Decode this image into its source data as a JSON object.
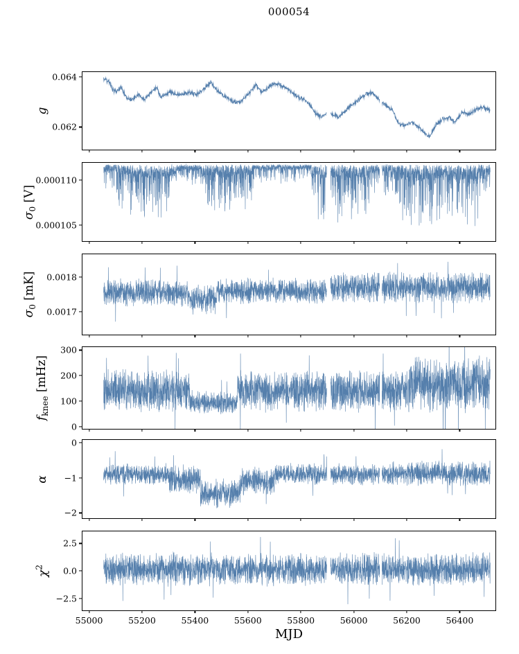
{
  "title": "000054",
  "xlabel": "MJD",
  "chart_data": {
    "type": "line",
    "title": "000054",
    "xlabel": "MJD",
    "series_color": "#4c78a8",
    "axis_color": "#000000",
    "grid": false,
    "legend": false,
    "x": {
      "lim": [
        54975,
        56535
      ],
      "ticks": [
        {
          "v": 55000,
          "label": "55000"
        },
        {
          "v": 55200,
          "label": "55200"
        },
        {
          "v": 55400,
          "label": "55400"
        },
        {
          "v": 55600,
          "label": "55600"
        },
        {
          "v": 55800,
          "label": "55800"
        },
        {
          "v": 56000,
          "label": "56000"
        },
        {
          "v": 56200,
          "label": "56200"
        },
        {
          "v": 56400,
          "label": "56400"
        }
      ],
      "data_range": [
        55055,
        56515
      ],
      "gaps": [
        [
          55898,
          55912
        ],
        [
          56098,
          56106
        ]
      ]
    },
    "panels": [
      {
        "id": "g",
        "ylabel": "g",
        "ylabel_parts": {
          "main": "g",
          "italic": true
        },
        "ylim": [
          0.0611,
          0.0642
        ],
        "yticks": [
          {
            "v": 0.064,
            "label": "0.064"
          },
          {
            "v": 0.062,
            "label": "0.062"
          }
        ],
        "style": "trend",
        "jitter": 8e-05,
        "trend_x": [
          55060,
          55075,
          55090,
          55105,
          55120,
          55140,
          55160,
          55185,
          55210,
          55235,
          55255,
          55270,
          55285,
          55305,
          55330,
          55355,
          55380,
          55400,
          55420,
          55440,
          55460,
          55480,
          55500,
          55520,
          55545,
          55570,
          55590,
          55610,
          55630,
          55650,
          55670,
          55690,
          55715,
          55740,
          55765,
          55790,
          55815,
          55840,
          55860,
          55880,
          55900,
          55920,
          55945,
          55970,
          55995,
          56020,
          56045,
          56070,
          56095,
          56120,
          56145,
          56170,
          56195,
          56220,
          56245,
          56265,
          56285,
          56310,
          56335,
          56360,
          56385,
          56410,
          56435,
          56460,
          56485,
          56510
        ],
        "trend_y": [
          0.0639,
          0.0638,
          0.0635,
          0.0634,
          0.0636,
          0.0632,
          0.0631,
          0.0633,
          0.0631,
          0.0634,
          0.0636,
          0.0632,
          0.0633,
          0.0634,
          0.0633,
          0.0633,
          0.0634,
          0.0633,
          0.0634,
          0.0636,
          0.0638,
          0.0635,
          0.0633,
          0.0632,
          0.063,
          0.063,
          0.0632,
          0.0634,
          0.0637,
          0.0634,
          0.0635,
          0.0637,
          0.0637,
          0.0636,
          0.0634,
          0.0632,
          0.0631,
          0.0628,
          0.0625,
          0.0624,
          0.0626,
          0.0625,
          0.0624,
          0.0627,
          0.0629,
          0.0631,
          0.0633,
          0.0634,
          0.0631,
          0.0629,
          0.0627,
          0.0621,
          0.0621,
          0.0622,
          0.062,
          0.0618,
          0.0616,
          0.0621,
          0.0623,
          0.0624,
          0.0622,
          0.0626,
          0.0625,
          0.0627,
          0.0628,
          0.0627
        ]
      },
      {
        "id": "sigma0_V",
        "ylabel": "σ0 [V]",
        "ylabel_parts": {
          "main": "σ",
          "sub": "0",
          "post": " [V]",
          "italic": true
        },
        "ylim": [
          0.0001032,
          0.0001119
        ],
        "yticks": [
          {
            "v": 0.00011,
            "label": "0.000110"
          },
          {
            "v": 0.000105,
            "label": "0.000105"
          }
        ],
        "style": "topdown",
        "top": 0.0001117,
        "segments": [
          {
            "x0": 55055,
            "x1": 55100,
            "depth": 3e-06
          },
          {
            "x0": 55100,
            "x1": 55150,
            "depth": 5e-06
          },
          {
            "x0": 55150,
            "x1": 55330,
            "depth": 6.5e-06
          },
          {
            "x0": 55330,
            "x1": 55430,
            "depth": 2.5e-06
          },
          {
            "x0": 55430,
            "x1": 55620,
            "depth": 5.5e-06
          },
          {
            "x0": 55620,
            "x1": 55840,
            "depth": 2.2e-06
          },
          {
            "x0": 55840,
            "x1": 56060,
            "depth": 6.5e-06
          },
          {
            "x0": 56060,
            "x1": 56170,
            "depth": 4e-06
          },
          {
            "x0": 56170,
            "x1": 56470,
            "depth": 7.5e-06
          },
          {
            "x0": 56470,
            "x1": 56515,
            "depth": 3.5e-06
          }
        ]
      },
      {
        "id": "sigma0_mK",
        "ylabel": "σ0 [mK]",
        "ylabel_parts": {
          "main": "σ",
          "sub": "0",
          "post": " [mK]",
          "italic": true
        },
        "ylim": [
          0.001635,
          0.001865
        ],
        "yticks": [
          {
            "v": 0.0018,
            "label": "0.0018"
          },
          {
            "v": 0.0017,
            "label": "0.0017"
          }
        ],
        "style": "band",
        "segments": [
          {
            "x0": 55055,
            "x1": 55380,
            "center": 0.001755,
            "amp": 4.2e-05
          },
          {
            "x0": 55380,
            "x1": 55480,
            "center": 0.001735,
            "amp": 4.5e-05
          },
          {
            "x0": 55480,
            "x1": 55900,
            "center": 0.00176,
            "amp": 4e-05
          },
          {
            "x0": 55900,
            "x1": 56515,
            "center": 0.00177,
            "amp": 4.8e-05
          }
        ]
      },
      {
        "id": "f_knee",
        "ylabel": "f_knee [mHz]",
        "ylabel_parts": {
          "main": "f",
          "sub": "knee",
          "post": " [mHz]",
          "italic": true
        },
        "ylim": [
          -8,
          312
        ],
        "yticks": [
          {
            "v": 300,
            "label": "300"
          },
          {
            "v": 200,
            "label": "200"
          },
          {
            "v": 100,
            "label": "100"
          },
          {
            "v": 0,
            "label": "0"
          }
        ],
        "style": "band",
        "segments": [
          {
            "x0": 55055,
            "x1": 55380,
            "center": 140,
            "amp": 90
          },
          {
            "x0": 55380,
            "x1": 55560,
            "center": 95,
            "amp": 50
          },
          {
            "x0": 55560,
            "x1": 55900,
            "center": 140,
            "amp": 85
          },
          {
            "x0": 55900,
            "x1": 56200,
            "center": 140,
            "amp": 90
          },
          {
            "x0": 56200,
            "x1": 56515,
            "center": 165,
            "amp": 120
          }
        ]
      },
      {
        "id": "alpha",
        "ylabel": "α",
        "ylabel_parts": {
          "main": "α",
          "italic": true
        },
        "ylim": [
          -2.15,
          0.08
        ],
        "yticks": [
          {
            "v": 0,
            "label": "0"
          },
          {
            "v": -1,
            "label": "−1"
          },
          {
            "v": -2,
            "label": "−2"
          }
        ],
        "style": "band",
        "segments": [
          {
            "x0": 55055,
            "x1": 55300,
            "center": -0.9,
            "amp": 0.33
          },
          {
            "x0": 55300,
            "x1": 55420,
            "center": -1.05,
            "amp": 0.45
          },
          {
            "x0": 55420,
            "x1": 55570,
            "center": -1.45,
            "amp": 0.45
          },
          {
            "x0": 55570,
            "x1": 55700,
            "center": -1.1,
            "amp": 0.45
          },
          {
            "x0": 55700,
            "x1": 56100,
            "center": -0.9,
            "amp": 0.33
          },
          {
            "x0": 56100,
            "x1": 56515,
            "center": -0.88,
            "amp": 0.38
          }
        ]
      },
      {
        "id": "chi2",
        "ylabel": "χ²",
        "ylabel_parts": {
          "main": "χ",
          "sup": "2",
          "italic": true
        },
        "ylim": [
          -3.6,
          3.6
        ],
        "yticks": [
          {
            "v": 2.5,
            "label": "2.5"
          },
          {
            "v": 0.0,
            "label": "0.0"
          },
          {
            "v": -2.5,
            "label": "−2.5"
          }
        ],
        "style": "band",
        "segments": [
          {
            "x0": 55055,
            "x1": 56515,
            "center": 0.15,
            "amp": 1.6
          }
        ]
      }
    ]
  }
}
